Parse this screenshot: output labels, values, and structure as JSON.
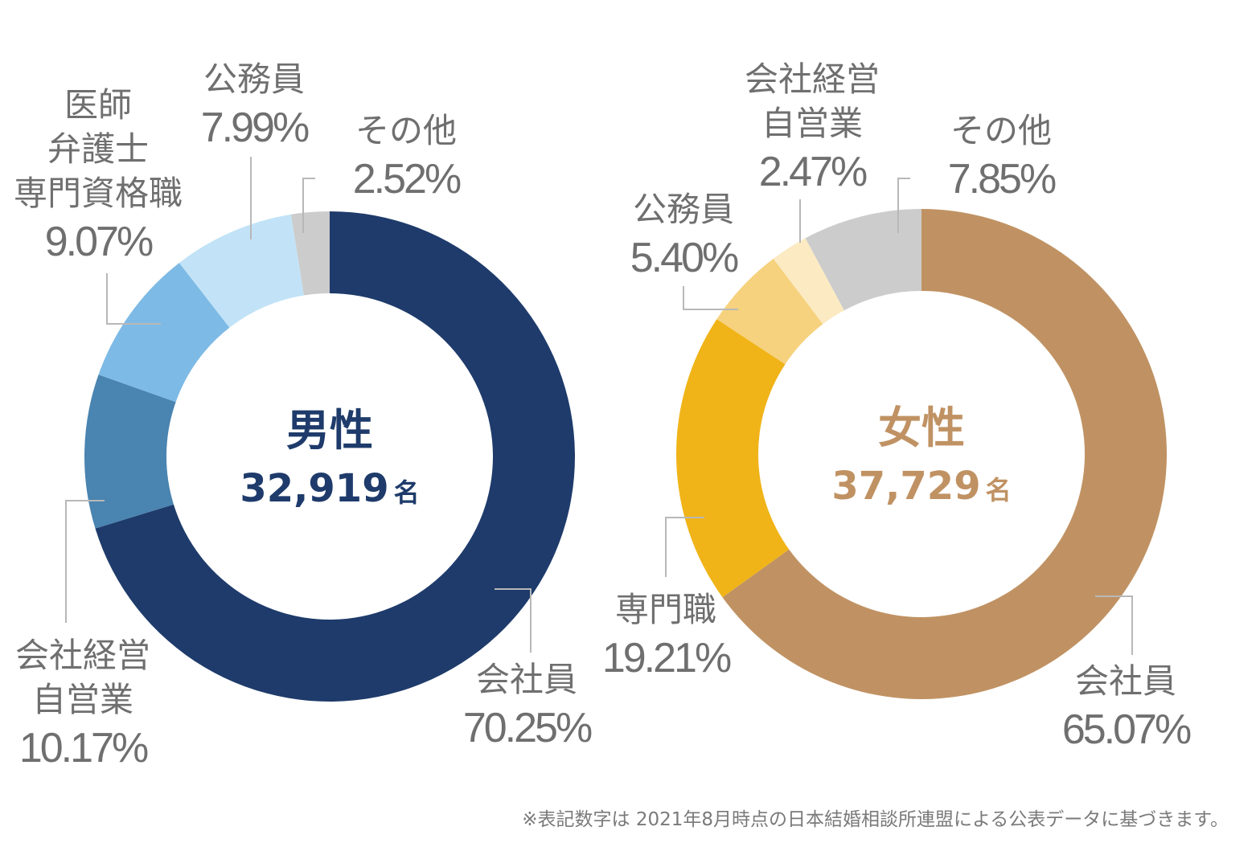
{
  "chart_data": [
    {
      "type": "pie",
      "center_title": "男性",
      "center_count": "32,919",
      "center_unit": "名",
      "accent_color": "#1e3b6b",
      "slices": [
        {
          "label": [
            "会社員"
          ],
          "value": 70.25,
          "display": "70.25%",
          "color": "#1e3b6b"
        },
        {
          "label": [
            "会社経営",
            "自営業"
          ],
          "value": 10.17,
          "display": "10.17%",
          "color": "#4a84b0"
        },
        {
          "label": [
            "医師",
            "弁護士",
            "専門資格職"
          ],
          "value": 9.07,
          "display": "9.07%",
          "color": "#7dbae6"
        },
        {
          "label": [
            "公務員"
          ],
          "value": 7.99,
          "display": "7.99%",
          "color": "#c2e3f7"
        },
        {
          "label": [
            "その他"
          ],
          "value": 2.52,
          "display": "2.52%",
          "color": "#cccccc"
        }
      ]
    },
    {
      "type": "pie",
      "center_title": "女性",
      "center_count": "37,729",
      "center_unit": "名",
      "accent_color": "#c09263",
      "slices": [
        {
          "label": [
            "会社員"
          ],
          "value": 65.07,
          "display": "65.07%",
          "color": "#c09263"
        },
        {
          "label": [
            "専門職"
          ],
          "value": 19.21,
          "display": "19.21%",
          "color": "#f0b418"
        },
        {
          "label": [
            "公務員"
          ],
          "value": 5.4,
          "display": "5.40%",
          "color": "#f6d27e"
        },
        {
          "label": [
            "会社経営",
            "自営業"
          ],
          "value": 2.47,
          "display": "2.47%",
          "color": "#fbeac2"
        },
        {
          "label": [
            "その他"
          ],
          "value": 7.85,
          "display": "7.85%",
          "color": "#cccccc"
        }
      ]
    }
  ],
  "footnote": "※表記数字は 2021年8月時点の日本結婚相談所連盟による公表データに基づきます。"
}
